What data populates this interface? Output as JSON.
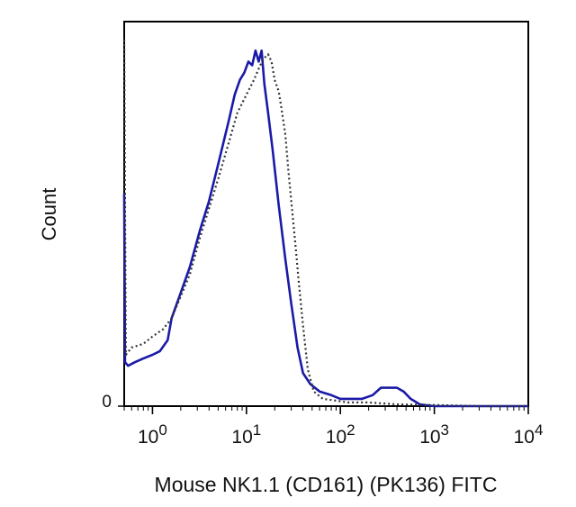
{
  "chart_data": {
    "type": "line",
    "title": "",
    "xlabel": "Mouse NK1.1 (CD161) (PK136) FITC",
    "ylabel": "Count",
    "x_scale": "log",
    "xlim": [
      0.5,
      10000
    ],
    "ylim": [
      0,
      100
    ],
    "x_ticks": [
      {
        "value": 1,
        "base": "10",
        "exp": "0"
      },
      {
        "value": 10,
        "base": "10",
        "exp": "1"
      },
      {
        "value": 100,
        "base": "10",
        "exp": "2"
      },
      {
        "value": 1000,
        "base": "10",
        "exp": "3"
      },
      {
        "value": 10000,
        "base": "10",
        "exp": "4"
      }
    ],
    "y_ticks": [
      {
        "value": 0,
        "label": "0"
      }
    ],
    "grid": false,
    "legend": null,
    "series": [
      {
        "style": "solid",
        "color": "#1a1aa8",
        "points": [
          [
            0.5,
            58
          ],
          [
            0.51,
            12
          ],
          [
            0.55,
            11
          ],
          [
            0.65,
            12
          ],
          [
            0.8,
            13
          ],
          [
            1.0,
            14
          ],
          [
            1.2,
            15
          ],
          [
            1.45,
            18
          ],
          [
            1.6,
            24
          ],
          [
            2.0,
            31
          ],
          [
            2.5,
            38
          ],
          [
            3.2,
            48
          ],
          [
            4.0,
            56
          ],
          [
            5.0,
            66
          ],
          [
            6.5,
            78
          ],
          [
            7.5,
            85
          ],
          [
            8.5,
            89
          ],
          [
            9.5,
            91
          ],
          [
            10.5,
            94
          ],
          [
            11.5,
            93
          ],
          [
            12.5,
            97
          ],
          [
            13.5,
            94
          ],
          [
            14.5,
            97
          ],
          [
            15.5,
            88
          ],
          [
            17,
            80
          ],
          [
            19,
            70
          ],
          [
            22,
            55
          ],
          [
            26,
            40
          ],
          [
            30,
            28
          ],
          [
            35,
            16
          ],
          [
            40,
            9
          ],
          [
            48,
            6
          ],
          [
            60,
            4
          ],
          [
            80,
            3
          ],
          [
            100,
            2
          ],
          [
            130,
            2
          ],
          [
            170,
            2
          ],
          [
            220,
            3
          ],
          [
            270,
            5
          ],
          [
            330,
            5
          ],
          [
            400,
            5
          ],
          [
            470,
            4
          ],
          [
            560,
            2
          ],
          [
            700,
            0.5
          ],
          [
            1000,
            0
          ],
          [
            2000,
            0
          ],
          [
            5000,
            0
          ],
          [
            10000,
            0
          ]
        ]
      },
      {
        "style": "dotted",
        "color": "#333333",
        "points": [
          [
            0.5,
            100
          ],
          [
            0.52,
            14
          ],
          [
            0.6,
            16
          ],
          [
            0.8,
            17
          ],
          [
            1.0,
            19
          ],
          [
            1.3,
            21
          ],
          [
            1.6,
            24
          ],
          [
            2.0,
            30
          ],
          [
            2.5,
            36
          ],
          [
            3.2,
            46
          ],
          [
            4.0,
            54
          ],
          [
            5.0,
            62
          ],
          [
            6.5,
            72
          ],
          [
            8.0,
            80
          ],
          [
            10.0,
            85
          ],
          [
            12.0,
            89
          ],
          [
            14.0,
            93
          ],
          [
            15.5,
            95
          ],
          [
            17.0,
            96
          ],
          [
            18.5,
            94
          ],
          [
            20.0,
            89
          ],
          [
            22.0,
            86
          ],
          [
            24.0,
            80
          ],
          [
            26.0,
            74
          ],
          [
            28.0,
            64
          ],
          [
            30.0,
            56
          ],
          [
            33.0,
            45
          ],
          [
            36.0,
            34
          ],
          [
            40.0,
            22
          ],
          [
            45.0,
            10
          ],
          [
            52.0,
            4
          ],
          [
            65.0,
            2
          ],
          [
            90.0,
            1.5
          ],
          [
            120.0,
            1
          ],
          [
            200.0,
            1
          ],
          [
            400.0,
            0.5
          ],
          [
            1000.0,
            0.3
          ],
          [
            3000.0,
            0
          ],
          [
            10000.0,
            0
          ]
        ]
      }
    ]
  }
}
